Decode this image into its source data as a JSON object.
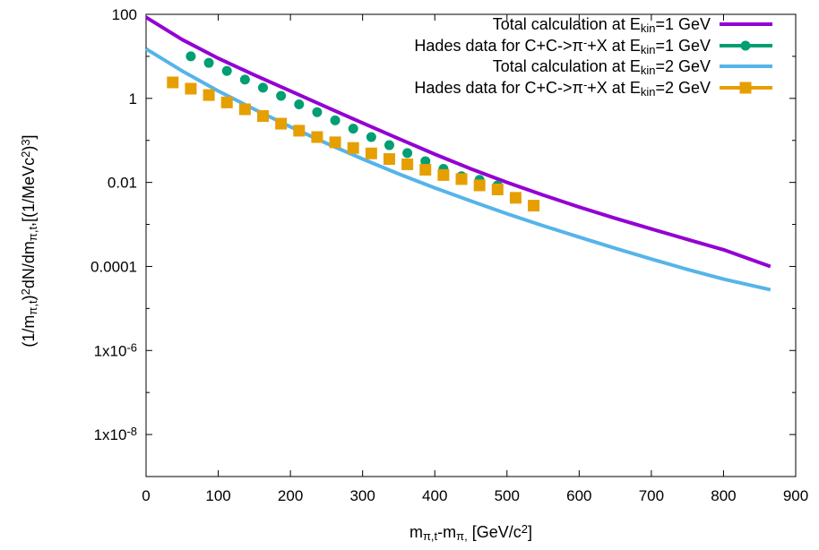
{
  "chart_data": {
    "type": "line",
    "title": "",
    "xlabel_parts": [
      {
        "t": "m"
      },
      {
        "t": "π,t",
        "s": "sub"
      },
      {
        "t": "-m"
      },
      {
        "t": "π,",
        "s": "sub"
      },
      {
        "t": " [GeV/c"
      },
      {
        "t": "2",
        "s": "sup"
      },
      {
        "t": "]"
      }
    ],
    "ylabel_parts": [
      {
        "t": "(1/m"
      },
      {
        "t": "π,t",
        "s": "sub"
      },
      {
        "t": ")"
      },
      {
        "t": "2",
        "s": "sup"
      },
      {
        "t": "dN/dm"
      },
      {
        "t": "π,t",
        "s": "sub"
      },
      {
        "t": ",[(1/MeVc"
      },
      {
        "t": "2",
        "s": "sup"
      },
      {
        "t": ")"
      },
      {
        "t": "3",
        "s": "sup"
      },
      {
        "t": "]"
      }
    ],
    "xlim": [
      0,
      900
    ],
    "ylim": [
      1e-09,
      100
    ],
    "y_scale": "log",
    "x_ticks": [
      0,
      100,
      200,
      300,
      400,
      500,
      600,
      700,
      800,
      900
    ],
    "y_ticks": [
      {
        "value": 100,
        "label": [
          {
            "t": "100"
          }
        ]
      },
      {
        "value": 1,
        "label": [
          {
            "t": "1"
          }
        ]
      },
      {
        "value": 0.01,
        "label": [
          {
            "t": "0.01"
          }
        ]
      },
      {
        "value": 0.0001,
        "label": [
          {
            "t": "0.0001"
          }
        ]
      },
      {
        "value": 1e-06,
        "label": [
          {
            "t": "1x10"
          },
          {
            "t": "-6",
            "s": "sup"
          }
        ]
      },
      {
        "value": 1e-08,
        "label": [
          {
            "t": "1x10"
          },
          {
            "t": "-8",
            "s": "sup"
          }
        ]
      }
    ],
    "legend_position": "top-right",
    "series": [
      {
        "label_parts": [
          {
            "t": "Total calculation at E"
          },
          {
            "t": "kin",
            "s": "sub"
          },
          {
            "t": "=1 GeV"
          }
        ],
        "kind": "line",
        "color": "#9400d3",
        "x": [
          0,
          50,
          100,
          150,
          200,
          250,
          300,
          350,
          400,
          450,
          500,
          550,
          600,
          650,
          700,
          750,
          800,
          865
        ],
        "y": [
          85,
          25,
          9,
          3.6,
          1.5,
          0.62,
          0.26,
          0.11,
          0.047,
          0.021,
          0.01,
          0.005,
          0.0026,
          0.0014,
          0.00078,
          0.00044,
          0.00025,
          0.0001
        ]
      },
      {
        "label_parts": [
          {
            "t": "Hades data for C+C->π"
          },
          {
            "t": "-",
            "s": "sup"
          },
          {
            "t": "+X at E"
          },
          {
            "t": "kin",
            "s": "sub"
          },
          {
            "t": "=1 GeV"
          }
        ],
        "kind": "points",
        "marker": "circle",
        "color": "#009e73",
        "x": [
          62,
          87,
          112,
          137,
          162,
          187,
          212,
          237,
          262,
          287,
          312,
          337,
          362,
          387,
          412,
          437,
          462,
          487
        ],
        "y": [
          10,
          7,
          4.5,
          2.8,
          1.8,
          1.15,
          0.72,
          0.47,
          0.3,
          0.19,
          0.12,
          0.077,
          0.05,
          0.032,
          0.021,
          0.014,
          0.0115,
          0.0085
        ]
      },
      {
        "label_parts": [
          {
            "t": "Total calculation at E"
          },
          {
            "t": "kin",
            "s": "sub"
          },
          {
            "t": "=2 GeV"
          }
        ],
        "kind": "line",
        "color": "#56b4e9",
        "x": [
          0,
          50,
          100,
          150,
          200,
          250,
          300,
          350,
          400,
          450,
          500,
          550,
          600,
          650,
          700,
          750,
          800,
          865
        ],
        "y": [
          15,
          4.5,
          1.5,
          0.55,
          0.21,
          0.085,
          0.036,
          0.016,
          0.0074,
          0.0036,
          0.0018,
          0.00093,
          0.0005,
          0.00027,
          0.00015,
          8.5e-05,
          5e-05,
          2.8e-05
        ]
      },
      {
        "label_parts": [
          {
            "t": "Hades data for C+C->π"
          },
          {
            "t": "-",
            "s": "sup"
          },
          {
            "t": "+X at E"
          },
          {
            "t": "kin",
            "s": "sub"
          },
          {
            "t": "=2 GeV"
          }
        ],
        "kind": "points",
        "marker": "square",
        "color": "#e69f00",
        "x": [
          37,
          62,
          87,
          112,
          137,
          162,
          187,
          212,
          237,
          262,
          287,
          312,
          337,
          362,
          387,
          412,
          437,
          462,
          487,
          512,
          537
        ],
        "y": [
          2.4,
          1.7,
          1.2,
          0.8,
          0.55,
          0.38,
          0.25,
          0.17,
          0.12,
          0.09,
          0.066,
          0.049,
          0.036,
          0.027,
          0.02,
          0.015,
          0.012,
          0.0085,
          0.0068,
          0.0043,
          0.0028
        ]
      }
    ]
  }
}
